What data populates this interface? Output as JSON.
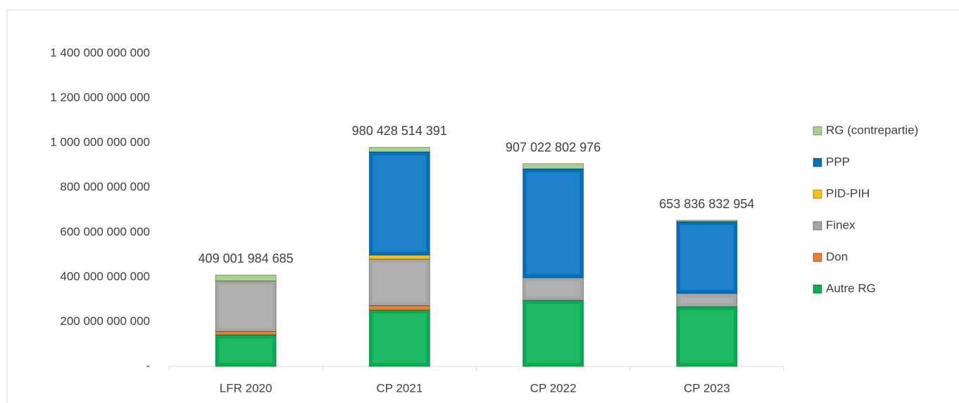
{
  "chart_data": {
    "type": "stacked_bar",
    "categories": [
      "LFR 2020",
      "CP 2021",
      "CP 2022",
      "CP 2023"
    ],
    "series": [
      {
        "name": "Autre RG",
        "color": "#00b050",
        "values": [
          141000000000,
          252000000000,
          296000000000,
          267000000000
        ]
      },
      {
        "name": "Don",
        "color": "#ed7d31",
        "values": [
          15000000000,
          20000000000,
          0,
          0
        ]
      },
      {
        "name": "Finex",
        "color": "#a5a5a5",
        "values": [
          226000000000,
          208000000000,
          101000000000,
          60000000000
        ]
      },
      {
        "name": "PID-PIH",
        "color": "#ffc000",
        "values": [
          0,
          18000000000,
          0,
          0
        ]
      },
      {
        "name": "PPP",
        "color": "#0070c0",
        "values": [
          0,
          462000000000,
          487000000000,
          321000000000
        ]
      },
      {
        "name": "RG (contrepartie)",
        "color": "#a9d18e",
        "values": [
          27000000000,
          20000000000,
          23000000000,
          6000000000
        ]
      }
    ],
    "totals": [
      409001984685,
      980428514391,
      907022802976,
      653836832954
    ],
    "total_labels": [
      "409 001 984 685",
      "980 428 514 391",
      "907 022 802 976",
      "653 836 832 954"
    ],
    "ylim": [
      0,
      1400000000000
    ],
    "yticks": [
      {
        "value": 0,
        "label": "-"
      },
      {
        "value": 200000000000,
        "label": "200 000 000 000"
      },
      {
        "value": 400000000000,
        "label": "400 000 000 000"
      },
      {
        "value": 600000000000,
        "label": "600 000 000 000"
      },
      {
        "value": 800000000000,
        "label": "800 000 000 000"
      },
      {
        "value": 1000000000000,
        "label": "1 000 000 000 000"
      },
      {
        "value": 1200000000000,
        "label": "1 200 000 000 000"
      },
      {
        "value": 1400000000000,
        "label": "1 400 000 000 000"
      }
    ],
    "legend": "right"
  }
}
